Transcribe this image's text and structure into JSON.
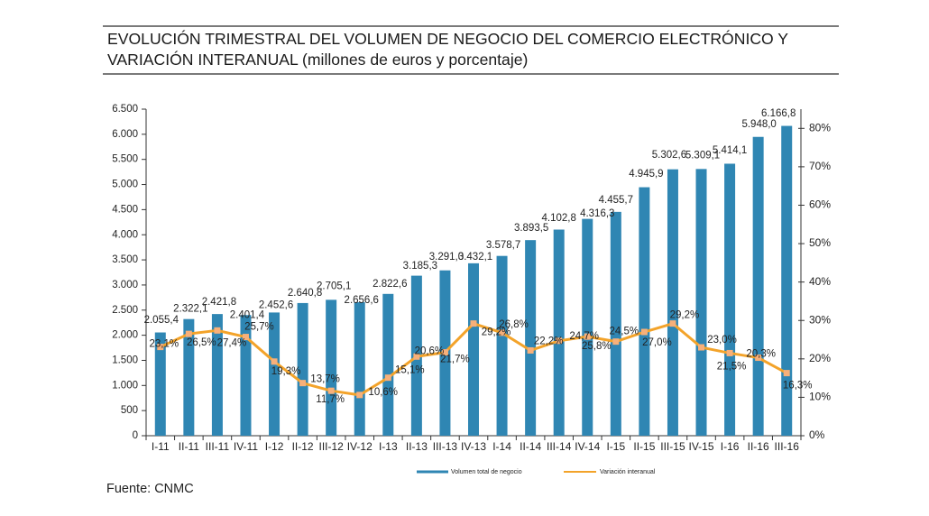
{
  "title": {
    "line1": "EVOLUCIÓN TRIMESTRAL DEL VOLUMEN DE NEGOCIO DEL COMERCIO ELECTRÓNICO Y",
    "line2": "VARIACIÓN INTERANUAL (millones de euros y porcentaje)"
  },
  "source": "Fuente: CNMC",
  "colors": {
    "bar": "#2F86B3",
    "line": "#F3A32A",
    "marker": "#F7B07A",
    "axis": "#333333",
    "rule": "#7A7A7A"
  },
  "chart_data": {
    "type": "bar",
    "title": "EVOLUCIÓN TRIMESTRAL DEL VOLUMEN DE NEGOCIO DEL COMERCIO ELECTRÓNICO Y VARIACIÓN INTERANUAL (millones de euros y porcentaje)",
    "categories": [
      "I-11",
      "II-11",
      "III-11",
      "IV-11",
      "I-12",
      "II-12",
      "III-12",
      "IV-12",
      "I-13",
      "II-13",
      "III-13",
      "IV-13",
      "I-14",
      "II-14",
      "III-14",
      "IV-14",
      "I-15",
      "II-15",
      "III-15",
      "IV-15",
      "I-16",
      "II-16",
      "III-16"
    ],
    "series": [
      {
        "name": "Volumen total de negocio",
        "type": "bar",
        "axis": "left",
        "unit": "millones de euros",
        "values": [
          2055.4,
          2322.1,
          2421.8,
          2401.4,
          2452.6,
          2640.8,
          2705.1,
          2656.6,
          2822.6,
          3185.3,
          3291.0,
          3432.1,
          3578.7,
          3893.5,
          4102.8,
          4316.3,
          4455.7,
          4945.9,
          5302.6,
          5309.1,
          5414.1,
          5948.0,
          6166.8
        ],
        "labels": [
          "2.055,4",
          "2.322,1",
          "2.421,8",
          "2.401,4",
          "2.452,6",
          "2.640,8",
          "2.705,1",
          "2.656,6",
          "2.822,6",
          "3.185,3",
          "3.291,0",
          "3.432,1",
          "3.578,7",
          "3.893,5",
          "4.102,8",
          "4.316,3",
          "4.455,7",
          "4.945,9",
          "5.302,6",
          "5.309,1",
          "5.414,1",
          "5.948,0",
          "6.166,8"
        ]
      },
      {
        "name": "Variación interanual",
        "type": "line",
        "axis": "right",
        "unit": "%",
        "values": [
          23.1,
          26.5,
          27.4,
          25.7,
          19.3,
          13.7,
          11.7,
          10.6,
          15.1,
          20.6,
          21.7,
          29.2,
          26.8,
          22.2,
          24.7,
          25.8,
          24.5,
          27.0,
          29.2,
          23.0,
          21.5,
          20.3,
          16.3
        ],
        "labels": [
          "23,1%",
          "26,5%",
          "27,4%",
          "25,7%",
          "19,3%",
          "13,7%",
          "11,7%",
          "10,6%",
          "15,1%",
          "20,6%",
          "21,7%",
          "29,2%",
          "26,8%",
          "22,2%",
          "24,7%",
          "25,8%",
          "24,5%",
          "27,0%",
          "29,2%",
          "23,0%",
          "21,5%",
          "20,3%",
          "16,3%"
        ]
      }
    ],
    "xlabel": "",
    "ylabel": "",
    "ylabel_right": "",
    "ylim": [
      0,
      6500
    ],
    "ylim_right": [
      0,
      85
    ],
    "yticks": [
      0,
      500,
      1000,
      1500,
      2000,
      2500,
      3000,
      3500,
      4000,
      4500,
      5000,
      5500,
      6000,
      6500
    ],
    "ytick_labels": [
      "0",
      "500",
      "1.000",
      "1.500",
      "2.000",
      "2.500",
      "3.000",
      "3.500",
      "4.000",
      "4.500",
      "5.000",
      "5.500",
      "6.000",
      "6.500"
    ],
    "yticks_right": [
      0,
      10,
      20,
      30,
      40,
      50,
      60,
      70,
      80
    ],
    "ytick_labels_right": [
      "0%",
      "10%",
      "20%",
      "30%",
      "40%",
      "50%",
      "60%",
      "70%",
      "80%"
    ],
    "grid": false,
    "legend": {
      "position": "bottom"
    }
  }
}
